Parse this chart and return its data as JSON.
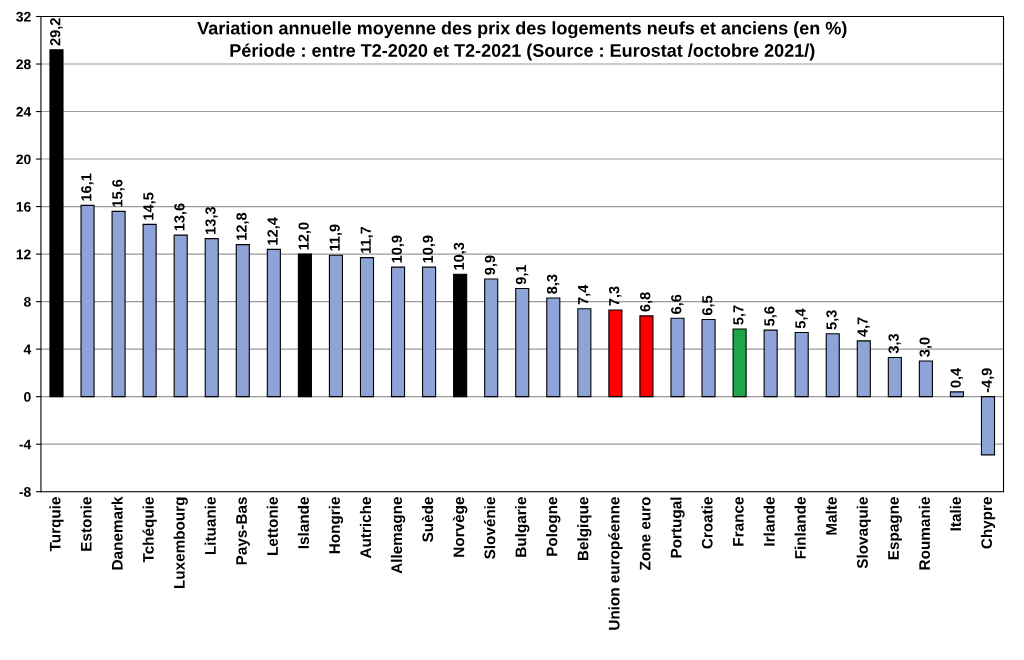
{
  "chart_data": {
    "type": "bar",
    "title": "Variation annuelle moyenne des prix des logements neufs et anciens (en %)\nPériode : entre T2-2020 et T2-2021 (Source : Eurostat /octobre 2021/)",
    "categories": [
      "Turquie",
      "Estonie",
      "Danemark",
      "Tchéquie",
      "Luxembourg",
      "Lituanie",
      "Pays-Bas",
      "Lettonie",
      "Islande",
      "Hongrie",
      "Autriche",
      "Allemagne",
      "Suède",
      "Norvège",
      "Slovénie",
      "Bulgarie",
      "Pologne",
      "Belgique",
      "Union européenne",
      "Zone euro",
      "Portugal",
      "Croatie",
      "France",
      "Irlande",
      "Finlande",
      "Malte",
      "Slovaquie",
      "Espagne",
      "Roumanie",
      "Italie",
      "Chypre"
    ],
    "values": [
      29.2,
      16.1,
      15.6,
      14.5,
      13.6,
      13.3,
      12.8,
      12.4,
      12.0,
      11.9,
      11.7,
      10.9,
      10.9,
      10.3,
      9.9,
      9.1,
      8.3,
      7.4,
      7.3,
      6.8,
      6.6,
      6.5,
      5.7,
      5.6,
      5.4,
      5.3,
      4.7,
      3.3,
      3.0,
      0.4,
      -4.9
    ],
    "value_labels": [
      "29,2",
      "16,1",
      "15,6",
      "14,5",
      "13,6",
      "13,3",
      "12,8",
      "12,4",
      "12,0",
      "11,9",
      "11,7",
      "10,9",
      "10,9",
      "10,3",
      "9,9",
      "9,1",
      "8,3",
      "7,4",
      "7,3",
      "6,8",
      "6,6",
      "6,5",
      "5,7",
      "5,6",
      "5,4",
      "5,3",
      "4,7",
      "3,3",
      "3,0",
      "0,4",
      "-4,9"
    ],
    "colors": [
      "#000000",
      "#8ea4d8",
      "#8ea4d8",
      "#8ea4d8",
      "#8ea4d8",
      "#8ea4d8",
      "#8ea4d8",
      "#8ea4d8",
      "#000000",
      "#8ea4d8",
      "#8ea4d8",
      "#8ea4d8",
      "#8ea4d8",
      "#000000",
      "#8ea4d8",
      "#8ea4d8",
      "#8ea4d8",
      "#8ea4d8",
      "#ff0000",
      "#ff0000",
      "#8ea4d8",
      "#8ea4d8",
      "#1fa64a",
      "#8ea4d8",
      "#8ea4d8",
      "#8ea4d8",
      "#8ea4d8",
      "#8ea4d8",
      "#8ea4d8",
      "#8ea4d8",
      "#8ea4d8"
    ],
    "ylim": [
      -8,
      32
    ],
    "yticks": [
      -8,
      -4,
      0,
      4,
      8,
      12,
      16,
      20,
      24,
      28,
      32
    ],
    "grid": "y"
  }
}
